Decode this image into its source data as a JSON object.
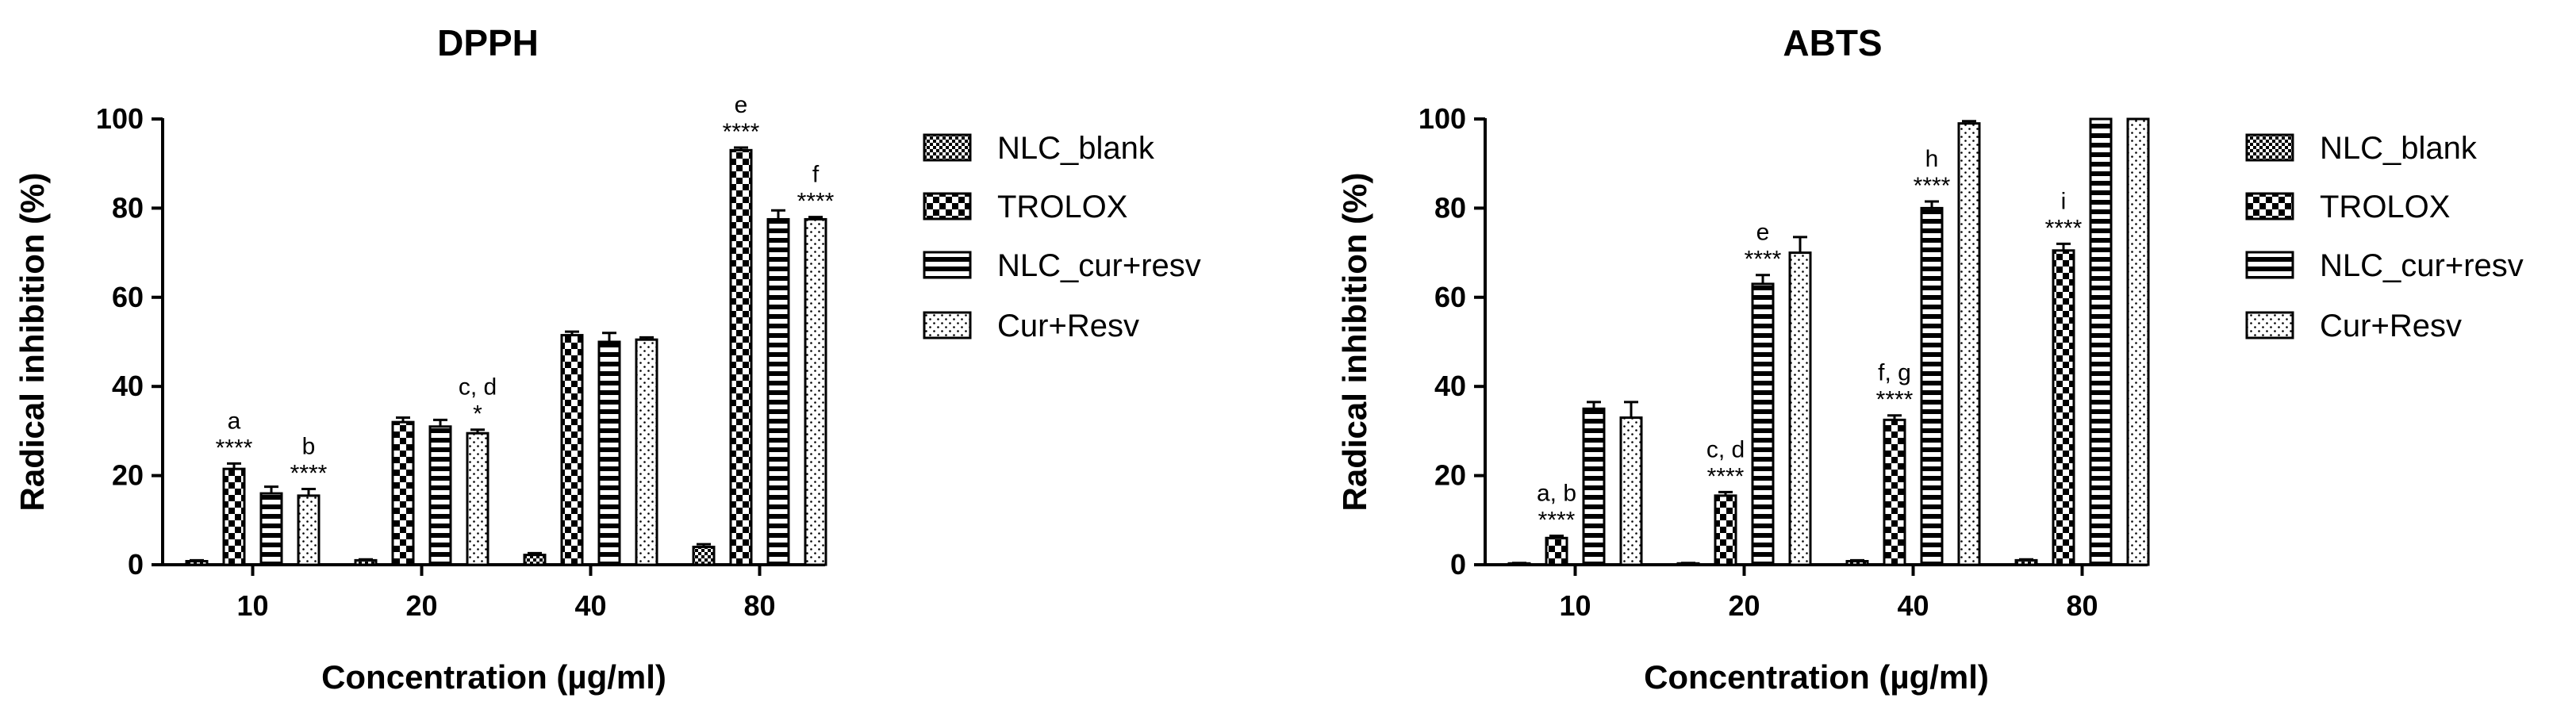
{
  "figure": {
    "legend": [
      "NLC_blank",
      "TROLOX",
      "NLC_cur+resv",
      "Cur+Resv"
    ],
    "colors": {
      "bar_fill": "#ffffff",
      "bar_stroke": "#000000",
      "axis": "#000000"
    },
    "patterns": [
      "checker-fine",
      "checker-coarse",
      "horizontal-stripes",
      "dots"
    ]
  },
  "chart_data": [
    {
      "type": "bar",
      "title": "DPPH",
      "xlabel": "Concentration (µg/ml)",
      "ylabel": "Radical inhibition (%)",
      "categories": [
        "10",
        "20",
        "40",
        "80"
      ],
      "ylim": [
        0,
        100
      ],
      "yticks": [
        "0",
        "20",
        "40",
        "60",
        "80",
        "100"
      ],
      "grid": false,
      "legend_position": "right",
      "series": [
        {
          "name": "NLC_blank",
          "values": [
            0.8,
            1.0,
            2.2,
            4.0
          ],
          "errors": [
            0.2,
            0.2,
            0.4,
            0.6
          ]
        },
        {
          "name": "TROLOX",
          "values": [
            21.5,
            32.0,
            51.5,
            93.0
          ],
          "errors": [
            1.2,
            1.0,
            0.8,
            0.6
          ]
        },
        {
          "name": "NLC_cur+resv",
          "values": [
            16.0,
            31.0,
            50.0,
            77.5
          ],
          "errors": [
            1.5,
            1.5,
            2.0,
            2.0
          ]
        },
        {
          "name": "Cur+Resv",
          "values": [
            15.5,
            29.5,
            50.5,
            77.5
          ],
          "errors": [
            1.5,
            0.8,
            0.5,
            0.5
          ]
        }
      ],
      "annotations": [
        {
          "category": 0,
          "series": 1,
          "letter": "a",
          "stars": "****"
        },
        {
          "category": 0,
          "series": 3,
          "letter": "b",
          "stars": "****"
        },
        {
          "category": 1,
          "series": 3,
          "letter": "c, d",
          "stars": "*"
        },
        {
          "category": 3,
          "series": 1,
          "letter": "e",
          "stars": "****"
        },
        {
          "category": 3,
          "series": 3,
          "letter": "f",
          "stars": "****"
        }
      ]
    },
    {
      "type": "bar",
      "title": "ABTS",
      "xlabel": "Concentration (µg/ml)",
      "ylabel": "Radical inhibition (%)",
      "categories": [
        "10",
        "20",
        "40",
        "80"
      ],
      "ylim": [
        0,
        100
      ],
      "yticks": [
        "0",
        "20",
        "40",
        "60",
        "80",
        "100"
      ],
      "grid": false,
      "legend_position": "right",
      "series": [
        {
          "name": "NLC_blank",
          "values": [
            0.3,
            0.3,
            0.8,
            1.0
          ],
          "errors": [
            0.1,
            0.1,
            0.2,
            0.2
          ]
        },
        {
          "name": "TROLOX",
          "values": [
            6.0,
            15.5,
            32.5,
            70.5
          ],
          "errors": [
            0.5,
            0.8,
            1.0,
            1.5
          ]
        },
        {
          "name": "NLC_cur+resv",
          "values": [
            35.0,
            63.0,
            80.0,
            100.0
          ],
          "errors": [
            1.5,
            2.0,
            1.5,
            0.0
          ]
        },
        {
          "name": "Cur+Resv",
          "values": [
            33.0,
            70.0,
            99.0,
            100.0
          ],
          "errors": [
            3.5,
            3.5,
            0.5,
            0.0
          ]
        }
      ],
      "annotations": [
        {
          "category": 0,
          "series": 1,
          "letter": "a, b",
          "stars": "****"
        },
        {
          "category": 1,
          "series": 1,
          "letter": "c, d",
          "stars": "****"
        },
        {
          "category": 1,
          "series": 2,
          "letter": "e",
          "stars": "****"
        },
        {
          "category": 2,
          "series": 1,
          "letter": "f, g",
          "stars": "****"
        },
        {
          "category": 2,
          "series": 2,
          "letter": "h",
          "stars": "****"
        },
        {
          "category": 3,
          "series": 1,
          "letter": "i",
          "stars": "****"
        }
      ]
    }
  ]
}
